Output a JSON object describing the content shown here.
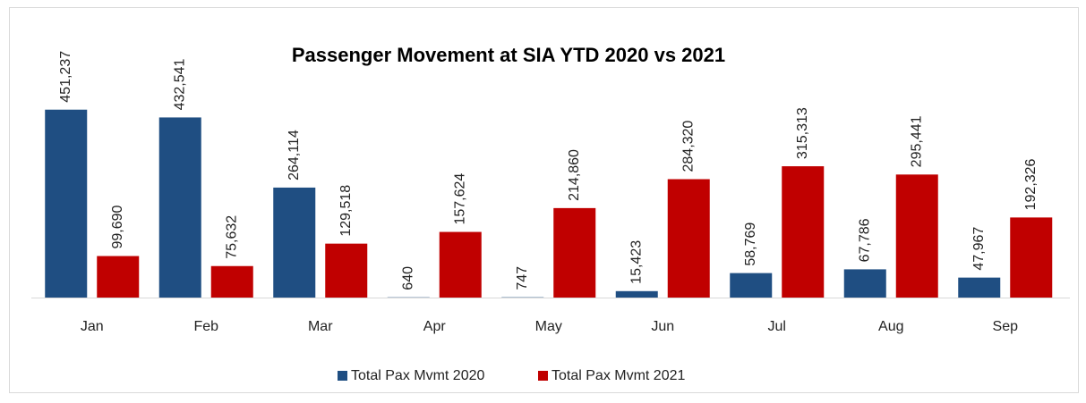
{
  "chart_data": {
    "type": "bar",
    "title": "Passenger Movement at SIA YTD 2020 vs 2021",
    "categories": [
      "Jan",
      "Feb",
      "Mar",
      "Apr",
      "May",
      "Jun",
      "Jul",
      "Aug",
      "Sep"
    ],
    "series": [
      {
        "name": "Total Pax Mvmt 2020",
        "color": "#1f4e82",
        "values": [
          451237,
          432541,
          264114,
          640,
          747,
          15423,
          58769,
          67786,
          47967
        ],
        "value_labels": [
          "451,237",
          "432,541",
          "264,114",
          "640",
          "747",
          "15,423",
          "58,769",
          "67,786",
          "47,967"
        ]
      },
      {
        "name": "Total Pax Mvmt 2021",
        "color": "#c00000",
        "values": [
          99690,
          75632,
          129518,
          157624,
          214860,
          284320,
          315313,
          295441,
          192326
        ],
        "value_labels": [
          "99,690",
          "75,632",
          "129,518",
          "157,624",
          "214,860",
          "284,320",
          "315,313",
          "295,441",
          "192,326"
        ]
      }
    ],
    "ylim": [
      0,
      500000
    ],
    "legend": "bottom"
  }
}
